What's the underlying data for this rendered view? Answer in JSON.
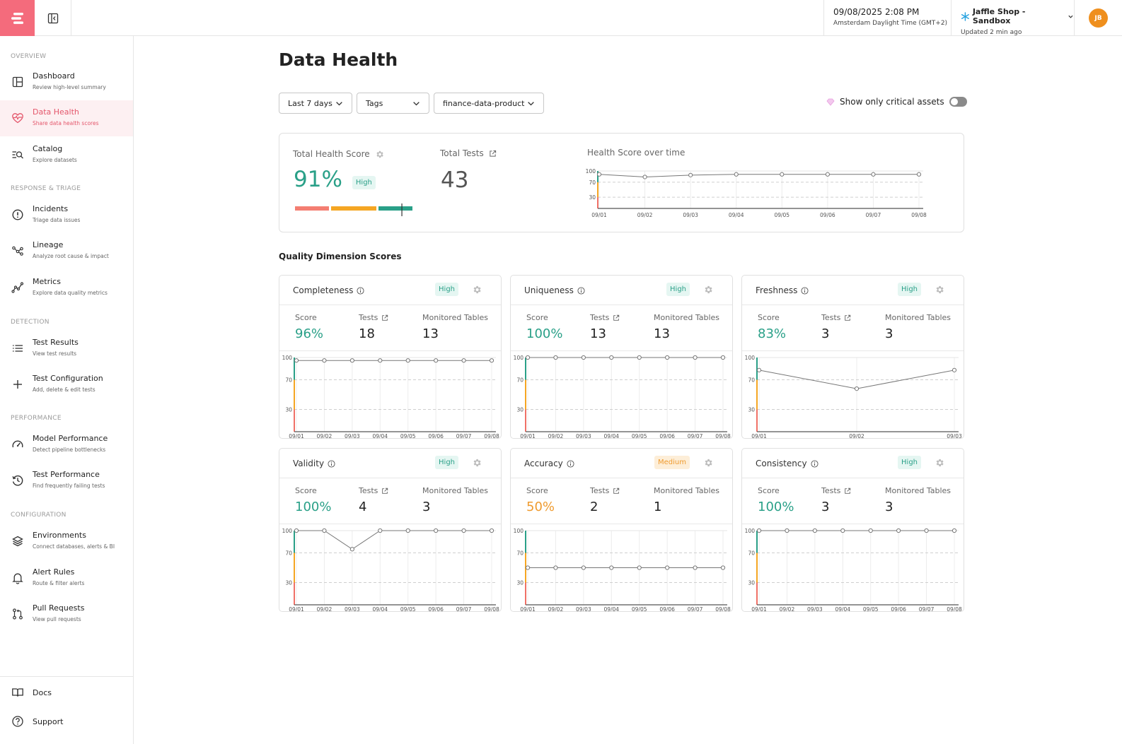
{
  "topbar": {
    "datetime": "09/08/2025 2:08 PM",
    "timezone": "Amsterdam Daylight Time (GMT+2)",
    "workspace": "Jaffle Shop - Sandbox",
    "updated": "Updated 2 min ago",
    "avatar_initials": "JB"
  },
  "sidebar": {
    "sections": [
      "OVERVIEW",
      "RESPONSE & TRIAGE",
      "DETECTION",
      "PERFORMANCE",
      "CONFIGURATION"
    ],
    "items": [
      {
        "title": "Dashboard",
        "subtitle": "Review high-level summary",
        "icon": "dashboard-icon"
      },
      {
        "title": "Data Health",
        "subtitle": "Share data health scores",
        "icon": "heart-pulse-icon"
      },
      {
        "title": "Catalog",
        "subtitle": "Explore datasets",
        "icon": "catalog-search-icon"
      },
      {
        "title": "Incidents",
        "subtitle": "Triage data issues",
        "icon": "alert-circle-icon"
      },
      {
        "title": "Lineage",
        "subtitle": "Analyze root cause & impact",
        "icon": "lineage-icon"
      },
      {
        "title": "Metrics",
        "subtitle": "Explore data quality metrics",
        "icon": "metrics-icon"
      },
      {
        "title": "Test Results",
        "subtitle": "View test results",
        "icon": "list-icon"
      },
      {
        "title": "Test Configuration",
        "subtitle": "Add, delete & edit tests",
        "icon": "plus-icon"
      },
      {
        "title": "Model Performance",
        "subtitle": "Detect pipeline bottlenecks",
        "icon": "gauge-icon"
      },
      {
        "title": "Test Performance",
        "subtitle": "Find frequently failing tests",
        "icon": "history-icon"
      },
      {
        "title": "Environments",
        "subtitle": "Connect databases, alerts & BI",
        "icon": "layers-icon"
      },
      {
        "title": "Alert Rules",
        "subtitle": "Route & filter alerts",
        "icon": "bell-icon"
      },
      {
        "title": "Pull Requests",
        "subtitle": "View pull requests",
        "icon": "pull-request-icon"
      }
    ],
    "bottom": [
      {
        "title": "Docs",
        "icon": "book-icon"
      },
      {
        "title": "Support",
        "icon": "help-icon"
      }
    ]
  },
  "page": {
    "title": "Data Health",
    "filters": {
      "range": "Last 7 days",
      "tags": "Tags",
      "product": "finance-data-product"
    },
    "critical_toggle_label": "Show only critical assets",
    "critical_toggle_on": false
  },
  "summary": {
    "health_label": "Total Health Score",
    "health_value": "91%",
    "health_badge": "High",
    "health_fraction": 0.91,
    "tests_label": "Total Tests",
    "tests_value": "43",
    "chart_title": "Health Score over time"
  },
  "quality_title": "Quality Dimension Scores",
  "labels": {
    "score": "Score",
    "tests": "Tests",
    "tables": "Monitored Tables"
  },
  "dimensions": [
    {
      "name": "Completeness",
      "badge": "High",
      "score": "96%",
      "tests": "18",
      "tables": "13"
    },
    {
      "name": "Uniqueness",
      "badge": "High",
      "score": "100%",
      "tests": "13",
      "tables": "13"
    },
    {
      "name": "Freshness",
      "badge": "High",
      "score": "83%",
      "tests": "3",
      "tables": "3"
    },
    {
      "name": "Validity",
      "badge": "High",
      "score": "100%",
      "tests": "4",
      "tables": "3"
    },
    {
      "name": "Accuracy",
      "badge": "Medium",
      "score": "50%",
      "tests": "2",
      "tables": "1"
    },
    {
      "name": "Consistency",
      "badge": "High",
      "score": "100%",
      "tests": "3",
      "tables": "3"
    }
  ],
  "colors": {
    "high": "#2aa088",
    "medium": "#ef9b2f",
    "low": "#f07167",
    "accent": "#f46b7c"
  },
  "chart_data": [
    {
      "type": "line",
      "title": "Health Score over time",
      "x": [
        "09/01",
        "09/02",
        "09/03",
        "09/04",
        "09/05",
        "09/06",
        "09/07",
        "09/08"
      ],
      "y": [
        91,
        84,
        89,
        91,
        91,
        91,
        91,
        91
      ],
      "yticks": [
        100,
        70,
        30
      ],
      "ylim": [
        0,
        100
      ],
      "grid": true
    },
    {
      "type": "line",
      "title": "Completeness",
      "x": [
        "09/01",
        "09/02",
        "09/03",
        "09/04",
        "09/05",
        "09/06",
        "09/07",
        "09/08"
      ],
      "y": [
        96,
        96,
        96,
        96,
        96,
        96,
        96,
        96
      ],
      "yticks": [
        100,
        70,
        30
      ],
      "ylim": [
        0,
        100
      ]
    },
    {
      "type": "line",
      "title": "Uniqueness",
      "x": [
        "09/01",
        "09/02",
        "09/03",
        "09/04",
        "09/05",
        "09/06",
        "09/07",
        "09/08"
      ],
      "y": [
        100,
        100,
        100,
        100,
        100,
        100,
        100,
        100
      ],
      "yticks": [
        100,
        70,
        30
      ],
      "ylim": [
        0,
        100
      ]
    },
    {
      "type": "line",
      "title": "Freshness",
      "x": [
        "09/01",
        "09/02",
        "09/03"
      ],
      "y": [
        83,
        58,
        83
      ],
      "yticks": [
        100,
        70,
        30
      ],
      "ylim": [
        0,
        100
      ]
    },
    {
      "type": "line",
      "title": "Validity",
      "x": [
        "09/01",
        "09/02",
        "09/03",
        "09/04",
        "09/05",
        "09/06",
        "09/07",
        "09/08"
      ],
      "y": [
        100,
        100,
        75,
        100,
        100,
        100,
        100,
        100
      ],
      "yticks": [
        100,
        70,
        30
      ],
      "ylim": [
        0,
        100
      ]
    },
    {
      "type": "line",
      "title": "Accuracy",
      "x": [
        "09/01",
        "09/02",
        "09/03",
        "09/04",
        "09/05",
        "09/06",
        "09/07",
        "09/08"
      ],
      "y": [
        50,
        50,
        50,
        50,
        50,
        50,
        50,
        50
      ],
      "yticks": [
        100,
        70,
        30
      ],
      "ylim": [
        0,
        100
      ]
    },
    {
      "type": "line",
      "title": "Consistency",
      "x": [
        "09/01",
        "09/02",
        "09/03",
        "09/04",
        "09/05",
        "09/06",
        "09/07",
        "09/08"
      ],
      "y": [
        100,
        100,
        100,
        100,
        100,
        100,
        100,
        100
      ],
      "yticks": [
        100,
        70,
        30
      ],
      "ylim": [
        0,
        100
      ]
    }
  ]
}
